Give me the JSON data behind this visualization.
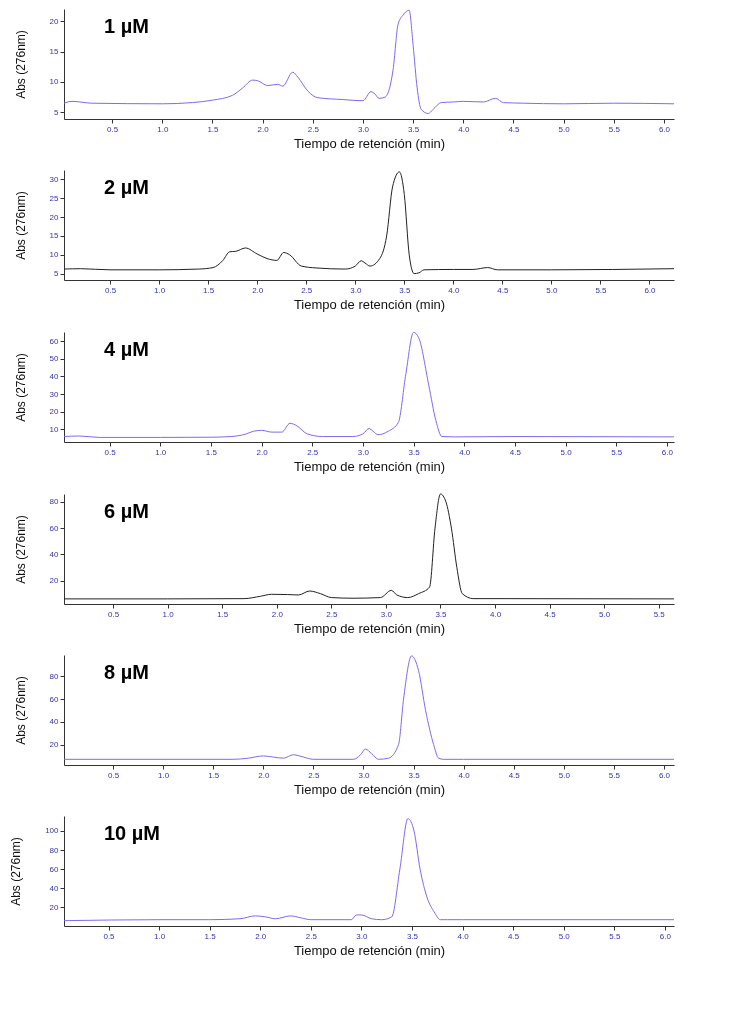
{
  "chart_data": [
    {
      "type": "line",
      "title": "1 µM",
      "xlabel": "Tiempo de retención (min)",
      "ylabel": "Abs (276nm)",
      "xlim": [
        0.02,
        6.1
      ],
      "ylim": [
        3.9,
        22
      ],
      "yticks": [
        5,
        10,
        15,
        20
      ],
      "xticks": [
        0.5,
        {
          "value": 1,
          "label": "1.0"
        },
        1.5,
        {
          "value": 2,
          "label": "2.0"
        },
        2.5,
        {
          "value": 3,
          "label": "3.0"
        },
        3.5,
        {
          "value": 4,
          "label": "4.0"
        },
        4.5,
        {
          "value": 5,
          "label": "5.0"
        },
        5.5,
        {
          "value": 6,
          "label": "6.0"
        }
      ],
      "x": [
        0.02,
        0.1,
        0.3,
        1.0,
        1.3,
        1.5,
        1.7,
        1.8,
        1.9,
        1.95,
        2.05,
        2.15,
        2.2,
        2.3,
        2.35,
        2.45,
        2.55,
        2.8,
        3.0,
        3.08,
        3.12,
        3.16,
        3.22,
        3.3,
        3.35,
        3.4,
        3.46,
        3.5,
        3.54,
        3.58,
        3.65,
        3.7,
        3.78,
        3.9,
        4.0,
        4.2,
        4.32,
        4.4,
        4.6,
        5.0,
        5.5,
        6.1
      ],
      "series": [
        {
          "color": "#7b6cf0",
          "values": [
            6.5,
            6.8,
            6.5,
            6.4,
            6.6,
            7.0,
            7.8,
            9.0,
            10.3,
            10.2,
            9.4,
            9.6,
            9.3,
            11.6,
            10.8,
            8.5,
            7.4,
            7.1,
            6.9,
            8.4,
            8.0,
            7.3,
            7.5,
            12,
            19.5,
            21,
            21.8,
            16,
            9,
            5.5,
            4.8,
            5.5,
            6.6,
            6.7,
            6.8,
            6.7,
            7.3,
            6.6,
            6.5,
            6.4,
            6.5,
            6.4
          ]
        }
      ]
    },
    {
      "type": "line",
      "title": "2 µM",
      "xlabel": "Tiempo de retención (min)",
      "ylabel": "Abs (276nm)",
      "xlim": [
        0.03,
        6.25
      ],
      "ylim": [
        3.3,
        32.5
      ],
      "yticks": [
        5,
        10,
        15,
        20,
        25,
        30
      ],
      "xticks": [
        0.5,
        {
          "value": 1,
          "label": "1.0"
        },
        1.5,
        {
          "value": 2,
          "label": "2.0"
        },
        2.5,
        {
          "value": 3,
          "label": "3.0"
        },
        3.5,
        {
          "value": 4,
          "label": "4.0"
        },
        4.5,
        {
          "value": 5,
          "label": "5.0"
        },
        5.5,
        {
          "value": 6,
          "label": "6.0"
        }
      ],
      "x": [
        0.03,
        0.2,
        0.5,
        1.0,
        1.4,
        1.55,
        1.65,
        1.72,
        1.78,
        1.88,
        2.0,
        2.1,
        2.2,
        2.27,
        2.33,
        2.45,
        2.6,
        2.9,
        3.0,
        3.06,
        3.1,
        3.15,
        3.25,
        3.32,
        3.38,
        3.45,
        3.5,
        3.55,
        3.6,
        3.65,
        3.7,
        4.0,
        4.2,
        4.35,
        4.45,
        5.0,
        6.25
      ],
      "series": [
        {
          "color": "#222222",
          "values": [
            6.2,
            6.3,
            6.0,
            6.0,
            6.2,
            6.6,
            8.5,
            10.8,
            10.9,
            11.8,
            10.2,
            9.0,
            8.5,
            10.6,
            10,
            7,
            6.5,
            6.2,
            7.0,
            8.4,
            7.8,
            7.0,
            9,
            15,
            28,
            32,
            26,
            10,
            5.0,
            5.2,
            6.0,
            6.1,
            6.1,
            6.6,
            6.0,
            6.0,
            6.3
          ]
        }
      ]
    },
    {
      "type": "line",
      "title": "4 µM",
      "xlabel": "Tiempo de retención (min)",
      "ylabel": "Abs (276nm)",
      "xlim": [
        0.05,
        6.07
      ],
      "ylim": [
        2.9,
        65.2
      ],
      "yticks": [
        10,
        20,
        30,
        40,
        50,
        60
      ],
      "xticks": [
        0.5,
        {
          "value": 1,
          "label": "1.0"
        },
        1.5,
        {
          "value": 2,
          "label": "2.0"
        },
        2.5,
        {
          "value": 3,
          "label": "3.0"
        },
        3.5,
        {
          "value": 4,
          "label": "4.0"
        },
        4.5,
        {
          "value": 5,
          "label": "5.0"
        },
        5.5,
        {
          "value": 6,
          "label": "6.0"
        }
      ],
      "x": [
        0.05,
        0.2,
        0.4,
        1.0,
        1.5,
        1.7,
        1.85,
        1.92,
        2.0,
        2.1,
        2.2,
        2.28,
        2.35,
        2.45,
        2.6,
        2.9,
        3.0,
        3.06,
        3.1,
        3.15,
        3.25,
        3.35,
        3.42,
        3.5,
        3.55,
        3.65,
        3.72,
        3.78,
        3.9,
        4.5,
        6.07
      ],
      "series": [
        {
          "color": "#7b6cf0",
          "values": [
            6,
            6.3,
            5.5,
            5.5,
            5.6,
            6,
            7.5,
            9,
            9.5,
            8.5,
            8.5,
            13.5,
            12,
            7.5,
            6,
            6,
            7.5,
            10.5,
            9,
            7,
            9,
            14,
            40,
            65,
            62,
            35,
            15,
            6,
            5.8,
            6,
            5.8
          ]
        }
      ]
    },
    {
      "type": "line",
      "title": "6 µM",
      "xlabel": "Tiempo de retención (min)",
      "ylabel": "Abs (276nm)",
      "xlim": [
        0.05,
        5.64
      ],
      "ylim": [
        2.1,
        86
      ],
      "yticks": [
        20,
        40,
        60,
        80
      ],
      "xticks": [
        0.5,
        {
          "value": 1,
          "label": "1.0"
        },
        1.5,
        {
          "value": 2,
          "label": "2.0"
        },
        2.5,
        {
          "value": 3,
          "label": "3.0"
        },
        3.5,
        {
          "value": 4,
          "label": "4.0"
        },
        4.5,
        {
          "value": 5,
          "label": "5.0"
        },
        5.5
      ],
      "x": [
        0.05,
        1.0,
        1.7,
        1.85,
        1.95,
        2.1,
        2.2,
        2.3,
        2.4,
        2.5,
        2.7,
        2.95,
        3.05,
        3.1,
        3.2,
        3.3,
        3.4,
        3.45,
        3.5,
        3.55,
        3.6,
        3.65,
        3.7,
        3.8,
        4.0,
        5.64
      ],
      "series": [
        {
          "color": "#222222",
          "values": [
            6,
            6,
            6.2,
            8,
            9.5,
            9.3,
            9,
            12,
            10,
            7,
            6.5,
            7,
            12.5,
            9,
            7,
            10,
            15,
            60,
            86,
            80,
            60,
            30,
            10,
            6.2,
            6.2,
            6
          ]
        }
      ]
    },
    {
      "type": "line",
      "title": "8 µM",
      "xlabel": "Tiempo de retención (min)",
      "ylabel": "Abs (276nm)",
      "xlim": [
        0.01,
        6.1
      ],
      "ylim": [
        2,
        98.8
      ],
      "yticks": [
        20,
        40,
        60,
        80
      ],
      "xticks": [
        0.5,
        {
          "value": 1,
          "label": "1.0"
        },
        1.5,
        {
          "value": 2,
          "label": "2.0"
        },
        2.5,
        {
          "value": 3,
          "label": "3.0"
        },
        3.5,
        {
          "value": 4,
          "label": "4.0"
        },
        4.5,
        {
          "value": 5,
          "label": "5.0"
        },
        5.5,
        {
          "value": 6,
          "label": "6.0"
        }
      ],
      "x": [
        0.01,
        0.5,
        1.7,
        1.85,
        2.0,
        2.1,
        2.2,
        2.3,
        2.4,
        2.5,
        2.9,
        2.97,
        3.02,
        3.08,
        3.15,
        3.25,
        3.35,
        3.4,
        3.48,
        3.55,
        3.62,
        3.7,
        3.75,
        3.8,
        4.0,
        6.1
      ],
      "series": [
        {
          "color": "#7b6cf0",
          "values": [
            7,
            7,
            7,
            8,
            10,
            9,
            8,
            11,
            9,
            7,
            7,
            11,
            16,
            12,
            7,
            8,
            20,
            60,
            98,
            85,
            50,
            20,
            8,
            7,
            7,
            7
          ]
        }
      ]
    },
    {
      "type": "line",
      "title": "10 µM",
      "xlabel": "Tiempo de retención (min)",
      "ylabel": "Abs (276nm)",
      "xlim": [
        0.06,
        6.09
      ],
      "ylim": [
        0.4,
        115.7
      ],
      "yticks": [
        20,
        40,
        60,
        80,
        100
      ],
      "xticks": [
        0.5,
        {
          "value": 1,
          "label": "1.0"
        },
        1.5,
        {
          "value": 2,
          "label": "2.0"
        },
        2.5,
        {
          "value": 3,
          "label": "3.0"
        },
        3.5,
        {
          "value": 4,
          "label": "4.0"
        },
        4.5,
        {
          "value": 5,
          "label": "5.0"
        },
        5.5,
        {
          "value": 6,
          "label": "6.0"
        }
      ],
      "x": [
        0.06,
        1.0,
        1.5,
        1.8,
        1.95,
        2.05,
        2.15,
        2.3,
        2.4,
        2.5,
        2.9,
        2.95,
        3.0,
        3.1,
        3.2,
        3.3,
        3.38,
        3.46,
        3.52,
        3.58,
        3.65,
        3.72,
        3.78,
        3.85,
        4.0,
        6.09
      ],
      "series": [
        {
          "color": "#7b6cf0",
          "values": [
            6,
            7,
            7,
            8,
            11,
            10,
            8,
            11,
            9,
            7,
            7,
            12,
            12,
            8,
            7,
            10,
            60,
            113,
            100,
            60,
            30,
            15,
            7,
            7,
            7,
            7
          ]
        }
      ]
    }
  ]
}
